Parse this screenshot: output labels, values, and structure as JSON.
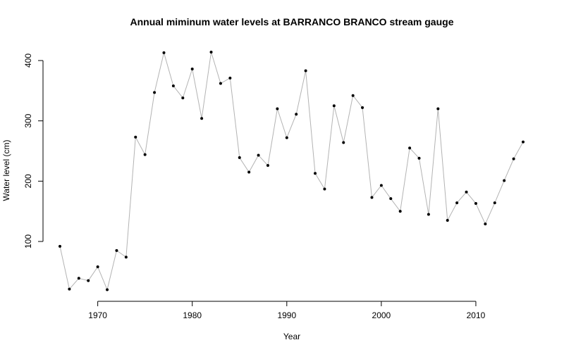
{
  "chart_data": {
    "type": "line",
    "title": "Annual miminum water levels at BARRANCO BRANCO stream gauge",
    "xlabel": "Year",
    "ylabel": "Water level (cm)",
    "xlim": [
      1966,
      2015
    ],
    "ylim": [
      20,
      415
    ],
    "x_ticks": [
      1970,
      1980,
      1990,
      2000,
      2010
    ],
    "y_ticks": [
      100,
      200,
      300,
      400
    ],
    "grid": false,
    "series": [
      {
        "color": "#b3b3b3",
        "marker_color": "#000000",
        "x": [
          1966,
          1967,
          1968,
          1969,
          1970,
          1971,
          1972,
          1973,
          1974,
          1975,
          1976,
          1977,
          1978,
          1979,
          1980,
          1981,
          1982,
          1983,
          1984,
          1985,
          1986,
          1987,
          1988,
          1989,
          1990,
          1991,
          1992,
          1993,
          1994,
          1995,
          1996,
          1997,
          1998,
          1999,
          2000,
          2001,
          2002,
          2003,
          2004,
          2005,
          2006,
          2007,
          2008,
          2009,
          2010,
          2011,
          2012,
          2013,
          2014,
          2015
        ],
        "values": [
          92,
          21,
          39,
          35,
          58,
          20,
          85,
          74,
          273,
          244,
          347,
          413,
          358,
          338,
          386,
          304,
          414,
          362,
          371,
          239,
          215,
          243,
          226,
          320,
          272,
          311,
          383,
          213,
          187,
          325,
          264,
          342,
          322,
          173,
          193,
          171,
          150,
          255,
          238,
          145,
          320,
          135,
          164,
          182,
          163,
          129,
          164,
          201,
          237,
          265
        ]
      }
    ]
  }
}
